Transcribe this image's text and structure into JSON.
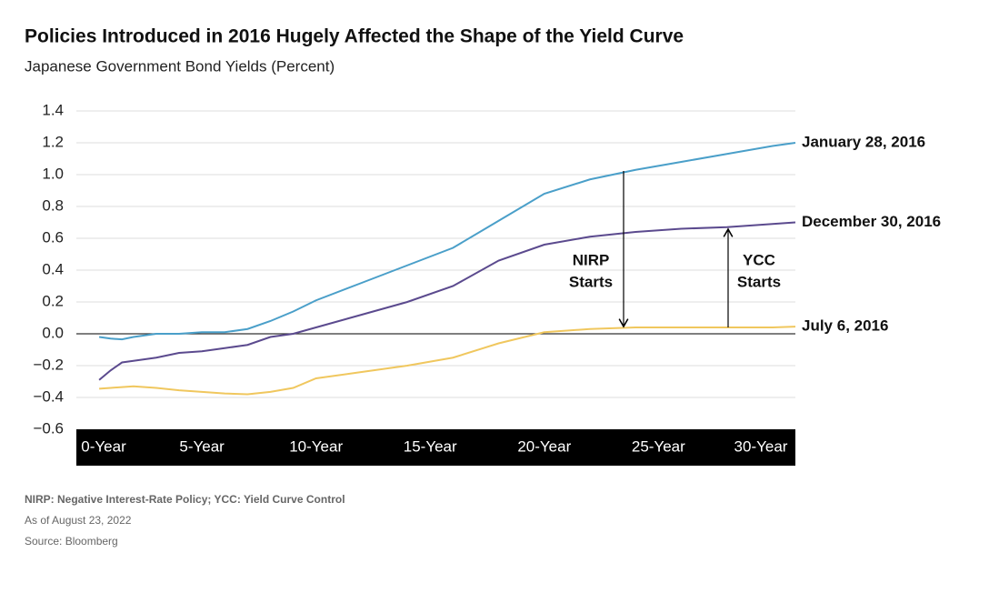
{
  "chart_data": {
    "type": "line",
    "title": "Policies Introduced in 2016 Hugely Affected the Shape of the Yield Curve",
    "subtitle": "Japanese Government Bond Yields (Percent)",
    "x": [
      0.5,
      1,
      1.5,
      2,
      3,
      4,
      5,
      6,
      7,
      8,
      9,
      10,
      12,
      14,
      16,
      18,
      20,
      22,
      24,
      26,
      28,
      30,
      31
    ],
    "series": [
      {
        "name": "January 28, 2016",
        "color": "#4a9fc9",
        "values": [
          -0.02,
          -0.03,
          -0.035,
          -0.02,
          0,
          0,
          0.01,
          0.01,
          0.03,
          0.08,
          0.14,
          0.21,
          0.32,
          0.43,
          0.54,
          0.71,
          0.88,
          0.97,
          1.03,
          1.08,
          1.13,
          1.18,
          1.2
        ]
      },
      {
        "name": "December 30, 2016",
        "color": "#5b4a8e",
        "values": [
          -0.29,
          -0.23,
          -0.18,
          -0.17,
          -0.15,
          -0.12,
          -0.11,
          -0.09,
          -0.07,
          -0.02,
          0,
          0.04,
          0.12,
          0.2,
          0.3,
          0.46,
          0.56,
          0.61,
          0.64,
          0.66,
          0.67,
          0.69,
          0.7
        ]
      },
      {
        "name": "July 6, 2016",
        "color": "#f0c75e",
        "values": [
          -0.345,
          -0.34,
          -0.335,
          -0.33,
          -0.34,
          -0.355,
          -0.365,
          -0.375,
          -0.38,
          -0.365,
          -0.34,
          -0.28,
          -0.24,
          -0.2,
          -0.15,
          -0.06,
          0.01,
          0.03,
          0.04,
          0.04,
          0.04,
          0.04,
          0.045
        ]
      }
    ],
    "xlim": [
      -0.5,
      31
    ],
    "xticks": [
      {
        "value": 0,
        "label": "0-Year"
      },
      {
        "value": 5,
        "label": "5-Year"
      },
      {
        "value": 10,
        "label": "10-Year"
      },
      {
        "value": 15,
        "label": "15-Year"
      },
      {
        "value": 20,
        "label": "20-Year"
      },
      {
        "value": 25,
        "label": "25-Year"
      },
      {
        "value": 30,
        "label": "30-Year"
      }
    ],
    "ylim": [
      -0.6,
      1.4
    ],
    "yticks": [
      {
        "value": -0.6,
        "label": "−0.6"
      },
      {
        "value": -0.4,
        "label": "−0.4"
      },
      {
        "value": -0.2,
        "label": "−0.2"
      },
      {
        "value": 0,
        "label": "0.0"
      },
      0.2,
      0.4,
      0.6,
      0.8,
      {
        "value": 1,
        "label": "1.0"
      },
      1.2,
      1.4
    ],
    "grid": true,
    "annotations": [
      {
        "lines": [
          "NIRP",
          "Starts"
        ]
      },
      {
        "lines": [
          "YCC",
          "Starts"
        ]
      }
    ],
    "notes": [
      "NIRP: Negative Interest-Rate Policy; YCC: Yield Curve Control",
      "As of August 23, 2022",
      "Source: Bloomberg"
    ]
  }
}
